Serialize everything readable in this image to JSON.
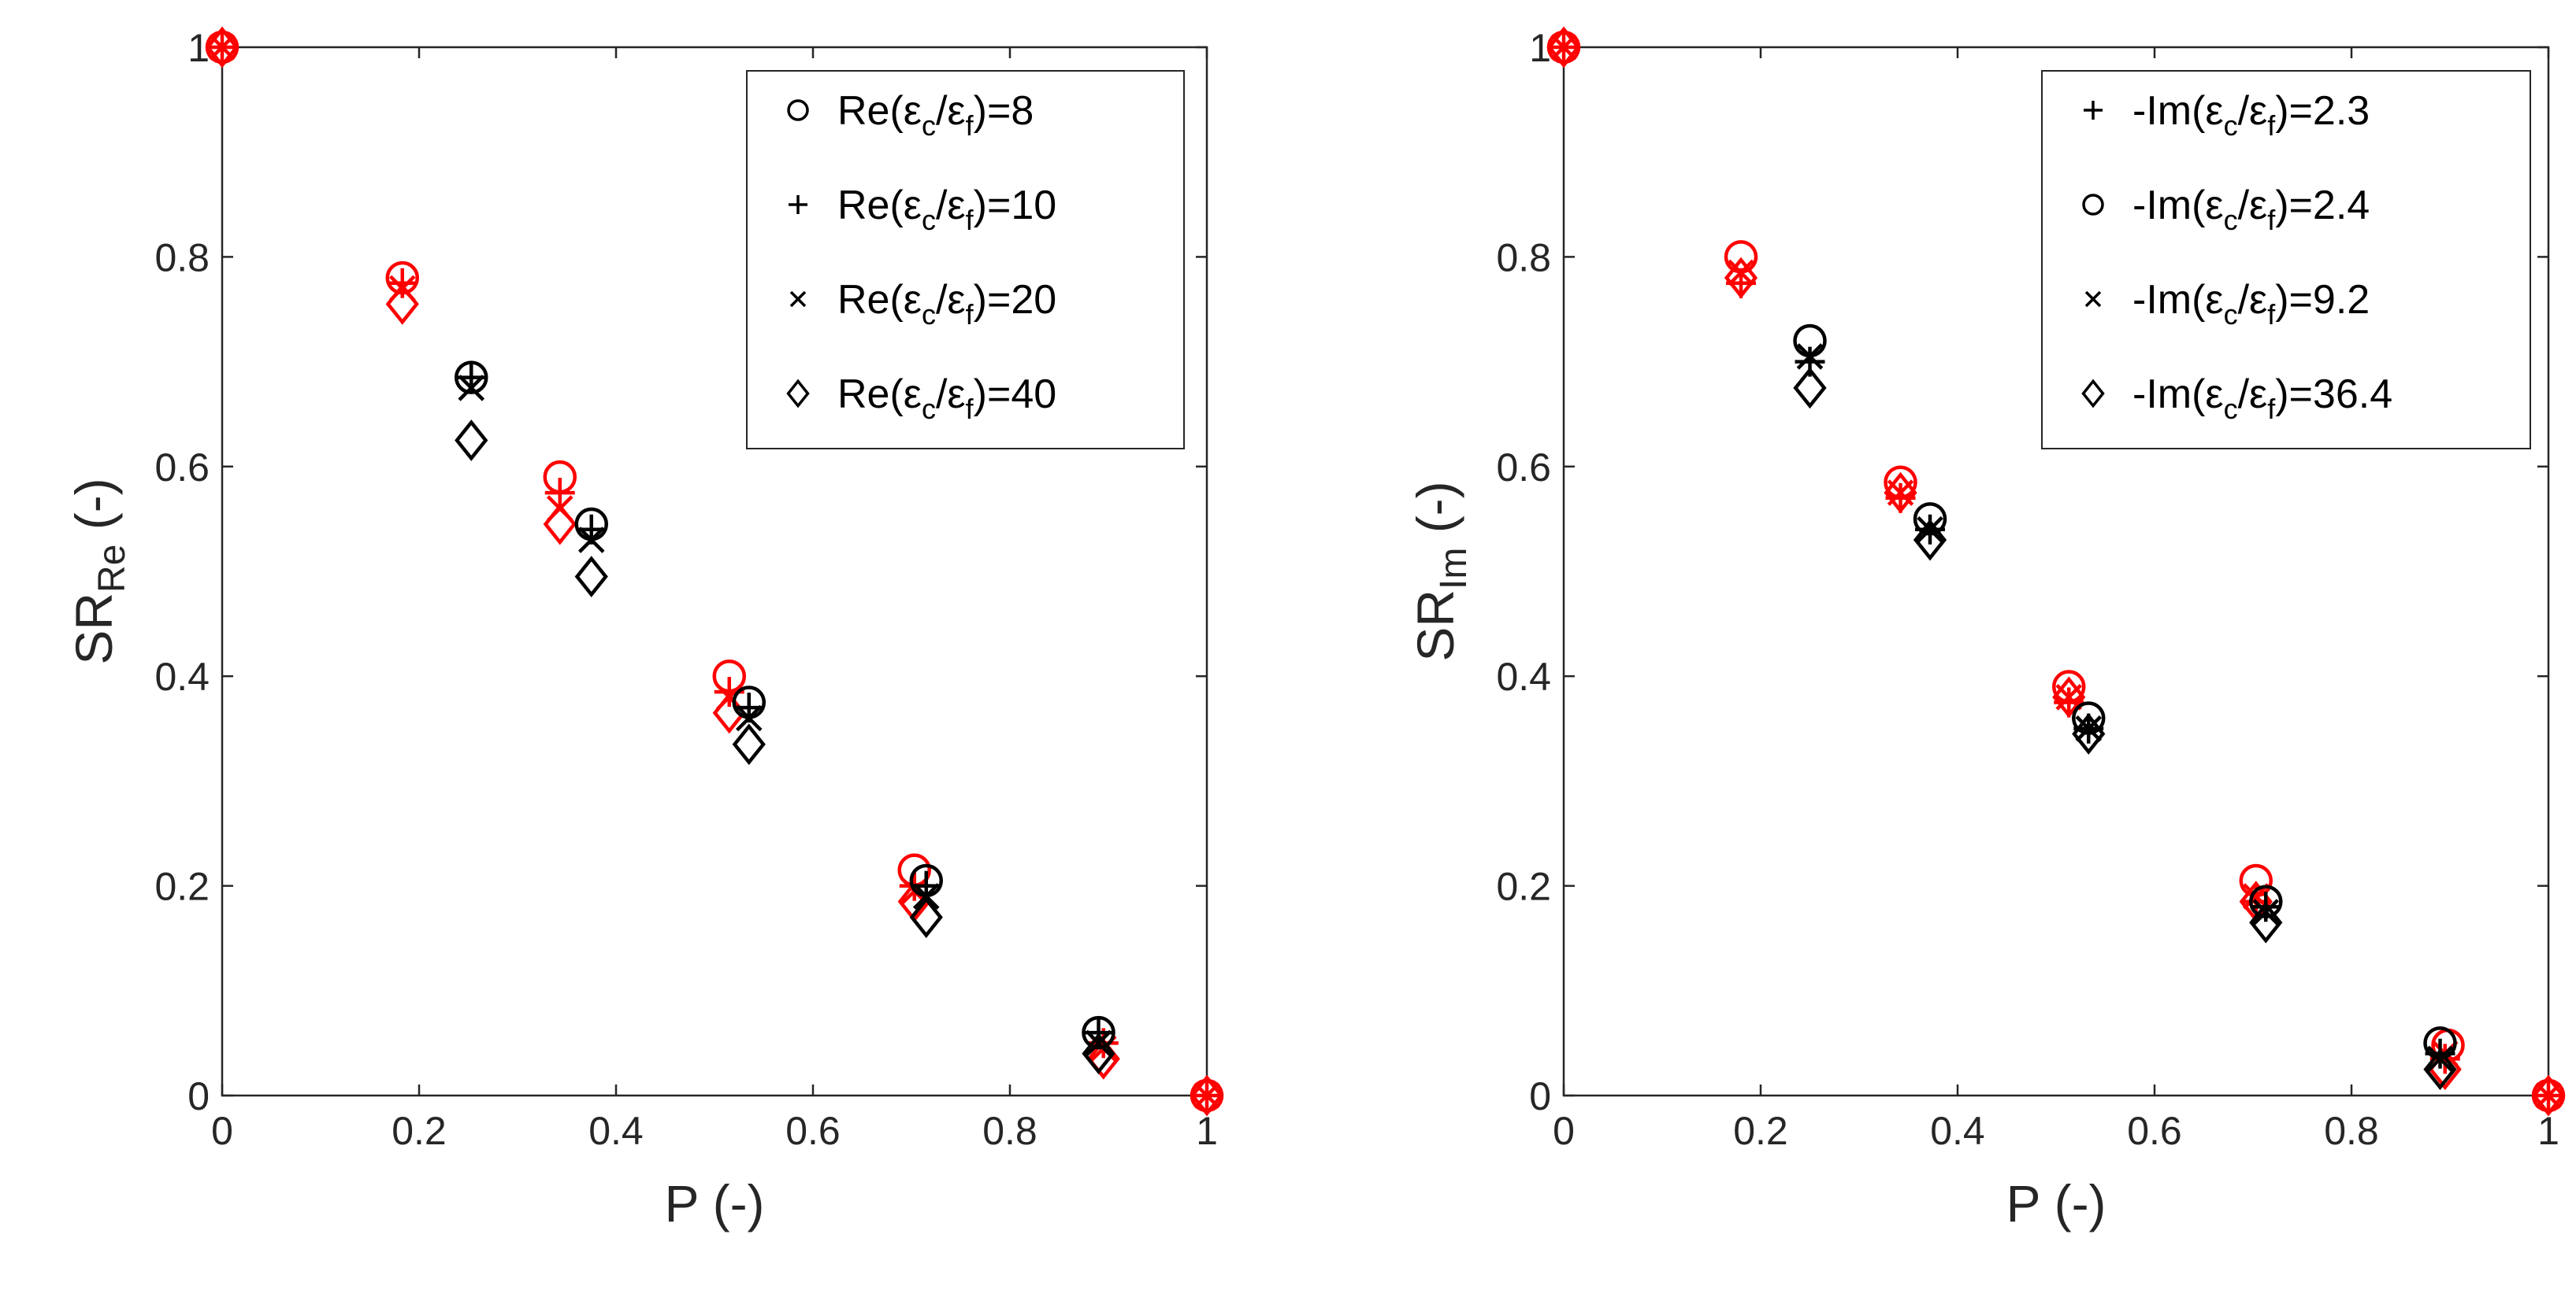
{
  "chart_data": [
    {
      "type": "scatter",
      "title": "",
      "xlabel": "P (-)",
      "ylabel": {
        "main": "SR",
        "sub": "Re",
        "suffix": " (-)"
      },
      "xlim": [
        0,
        1
      ],
      "ylim": [
        0,
        1
      ],
      "xticks": [
        "0",
        "0.2",
        "0.4",
        "0.6",
        "0.8",
        "1"
      ],
      "yticks": [
        "0",
        "0.2",
        "0.4",
        "0.6",
        "0.8",
        "1"
      ],
      "grid": false,
      "legend_position": "top-right",
      "colors": {
        "red": "#ff0000",
        "black": "#000000",
        "axis": "#262626"
      },
      "legend": [
        {
          "marker": "circle",
          "prefix": "Re(ε",
          "sub1": "c",
          "mid": "/ε",
          "sub2": "f",
          "suffix": ")=8"
        },
        {
          "marker": "plus",
          "prefix": "Re(ε",
          "sub1": "c",
          "mid": "/ε",
          "sub2": "f",
          "suffix": ")=10"
        },
        {
          "marker": "x",
          "prefix": "Re(ε",
          "sub1": "c",
          "mid": "/ε",
          "sub2": "f",
          "suffix": ")=20"
        },
        {
          "marker": "diamond",
          "prefix": "Re(ε",
          "sub1": "c",
          "mid": "/ε",
          "sub2": "f",
          "suffix": ")=40"
        }
      ],
      "series": [
        {
          "name": "Re(εc/εf)=8 (red)",
          "marker": "circle",
          "color": "red",
          "x": [
            0,
            0.183,
            0.343,
            0.515,
            0.703,
            1
          ],
          "y": [
            1,
            0.78,
            0.59,
            0.4,
            0.215,
            0
          ]
        },
        {
          "name": "Re(εc/εf)=10 (red)",
          "marker": "plus",
          "color": "red",
          "x": [
            0,
            0.183,
            0.343,
            0.515,
            0.703,
            0.895,
            1
          ],
          "y": [
            1,
            0.775,
            0.575,
            0.385,
            0.2,
            0.05,
            0
          ]
        },
        {
          "name": "Re(εc/εf)=20 (red)",
          "marker": "x",
          "color": "red",
          "x": [
            0,
            0.183,
            0.343,
            0.515,
            0.703,
            0.895,
            1
          ],
          "y": [
            1,
            0.77,
            0.56,
            0.38,
            0.195,
            0.045,
            0
          ]
        },
        {
          "name": "Re(εc/εf)=40 (red)",
          "marker": "diamond",
          "color": "red",
          "x": [
            0,
            0.183,
            0.343,
            0.515,
            0.703,
            0.895,
            1
          ],
          "y": [
            1,
            0.755,
            0.545,
            0.365,
            0.185,
            0.035,
            0
          ]
        },
        {
          "name": "Re(εc/εf)=8 (black)",
          "marker": "circle",
          "color": "black",
          "x": [
            0.253,
            0.375,
            0.535,
            0.715,
            0.89
          ],
          "y": [
            0.685,
            0.545,
            0.375,
            0.205,
            0.06
          ]
        },
        {
          "name": "Re(εc/εf)=10 (black)",
          "marker": "plus",
          "color": "black",
          "x": [
            0.253,
            0.375,
            0.535,
            0.715,
            0.89
          ],
          "y": [
            0.685,
            0.54,
            0.37,
            0.2,
            0.06
          ]
        },
        {
          "name": "Re(εc/εf)=20 (black)",
          "marker": "x",
          "color": "black",
          "x": [
            0.253,
            0.375,
            0.535,
            0.715,
            0.89
          ],
          "y": [
            0.675,
            0.53,
            0.36,
            0.19,
            0.05
          ]
        },
        {
          "name": "Re(εc/εf)=40 (black)",
          "marker": "diamond",
          "color": "black",
          "x": [
            0.253,
            0.375,
            0.535,
            0.715,
            0.89
          ],
          "y": [
            0.625,
            0.495,
            0.335,
            0.17,
            0.04
          ]
        }
      ]
    },
    {
      "type": "scatter",
      "title": "",
      "xlabel": "P (-)",
      "ylabel": {
        "main": "SR",
        "sub": "Im",
        "suffix": " (-)"
      },
      "xlim": [
        0,
        1
      ],
      "ylim": [
        0,
        1
      ],
      "xticks": [
        "0",
        "0.2",
        "0.4",
        "0.6",
        "0.8",
        "1"
      ],
      "yticks": [
        "0",
        "0.2",
        "0.4",
        "0.6",
        "0.8",
        "1"
      ],
      "grid": false,
      "legend_position": "top-right",
      "colors": {
        "red": "#ff0000",
        "black": "#000000",
        "axis": "#262626"
      },
      "legend": [
        {
          "marker": "plus",
          "prefix": "-Im(ε",
          "sub1": "c",
          "mid": "/ε",
          "sub2": "f",
          "suffix": ")=2.3"
        },
        {
          "marker": "circle",
          "prefix": "-Im(ε",
          "sub1": "c",
          "mid": "/ε",
          "sub2": "f",
          "suffix": ")=2.4"
        },
        {
          "marker": "x",
          "prefix": "-Im(ε",
          "sub1": "c",
          "mid": "/ε",
          "sub2": "f",
          "suffix": ")=9.2"
        },
        {
          "marker": "diamond",
          "prefix": "-Im(ε",
          "sub1": "c",
          "mid": "/ε",
          "sub2": "f",
          "suffix": ")=36.4"
        }
      ],
      "series": [
        {
          "name": "-Im(εc/εf)=2.3 (red)",
          "marker": "plus",
          "color": "red",
          "x": [
            0,
            0.18,
            0.342,
            0.513,
            0.703,
            0.895,
            1
          ],
          "y": [
            1,
            0.775,
            0.57,
            0.375,
            0.185,
            0.035,
            0
          ]
        },
        {
          "name": "-Im(εc/εf)=2.4 (red)",
          "marker": "circle",
          "color": "red",
          "x": [
            0,
            0.18,
            0.342,
            0.513,
            0.703,
            0.898,
            1
          ],
          "y": [
            1,
            0.8,
            0.585,
            0.39,
            0.205,
            0.048,
            0
          ]
        },
        {
          "name": "-Im(εc/εf)=9.2 (red)",
          "marker": "x",
          "color": "red",
          "x": [
            0,
            0.18,
            0.342,
            0.513,
            0.703,
            0.895,
            1
          ],
          "y": [
            1,
            0.785,
            0.575,
            0.38,
            0.19,
            0.04,
            0
          ]
        },
        {
          "name": "-Im(εc/εf)=36.4 (red)",
          "marker": "diamond",
          "color": "red",
          "x": [
            0,
            0.18,
            0.342,
            0.513,
            0.703,
            0.895,
            1
          ],
          "y": [
            1,
            0.78,
            0.575,
            0.38,
            0.185,
            0.025,
            0
          ]
        },
        {
          "name": "-Im(εc/εf)=2.3 (black)",
          "marker": "plus",
          "color": "black",
          "x": [
            0.25,
            0.372,
            0.533,
            0.713,
            0.89
          ],
          "y": [
            0.7,
            0.54,
            0.35,
            0.18,
            0.04
          ]
        },
        {
          "name": "-Im(εc/εf)=2.4 (black)",
          "marker": "circle",
          "color": "black",
          "x": [
            0.25,
            0.372,
            0.533,
            0.713,
            0.89
          ],
          "y": [
            0.72,
            0.55,
            0.36,
            0.185,
            0.05
          ]
        },
        {
          "name": "-Im(εc/εf)=9.2 (black)",
          "marker": "x",
          "color": "black",
          "x": [
            0.25,
            0.372,
            0.533,
            0.713,
            0.89
          ],
          "y": [
            0.705,
            0.54,
            0.35,
            0.175,
            0.035
          ]
        },
        {
          "name": "-Im(εc/εf)=36.4 (black)",
          "marker": "diamond",
          "color": "black",
          "x": [
            0.25,
            0.372,
            0.533,
            0.713,
            0.89
          ],
          "y": [
            0.675,
            0.53,
            0.345,
            0.165,
            0.025
          ]
        }
      ]
    }
  ]
}
